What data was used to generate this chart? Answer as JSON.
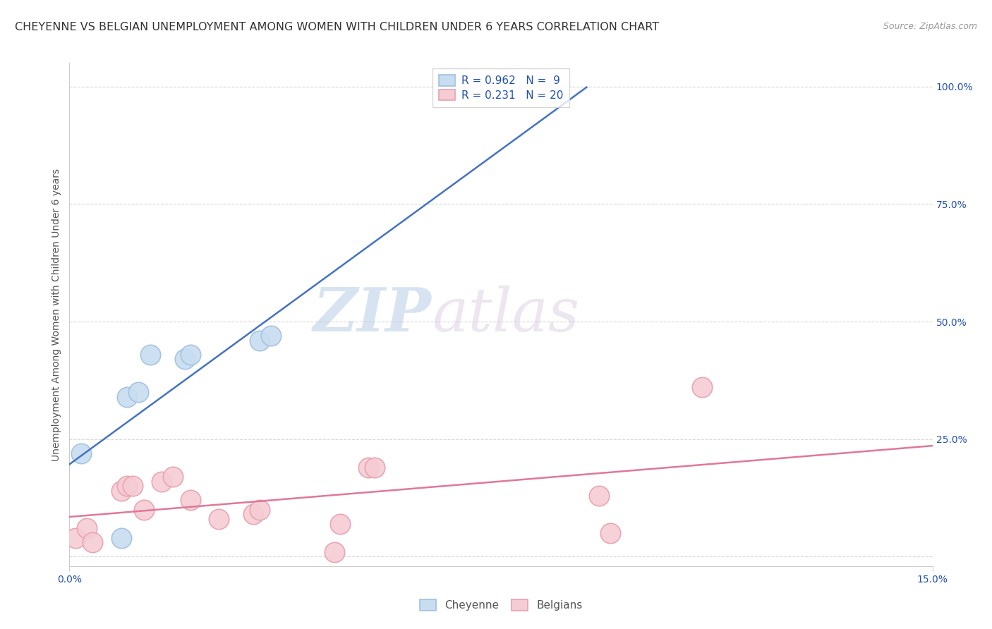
{
  "title": "CHEYENNE VS BELGIAN UNEMPLOYMENT AMONG WOMEN WITH CHILDREN UNDER 6 YEARS CORRELATION CHART",
  "source": "Source: ZipAtlas.com",
  "ylabel": "Unemployment Among Women with Children Under 6 years",
  "xlim": [
    0.0,
    0.15
  ],
  "ylim": [
    -0.02,
    1.05
  ],
  "plot_ylim": [
    0.0,
    1.0
  ],
  "right_yticks": [
    0.0,
    0.25,
    0.5,
    0.75,
    1.0
  ],
  "right_yticklabels": [
    "",
    "25.0%",
    "50.0%",
    "75.0%",
    "100.0%"
  ],
  "watermark_zip": "ZIP",
  "watermark_atlas": "atlas",
  "cheyenne": {
    "R": 0.962,
    "N": 9,
    "edge_color": "#a0c0e0",
    "fill_color": "#c8ddf0",
    "line_color": "#4472c4",
    "x": [
      0.002,
      0.009,
      0.01,
      0.012,
      0.014,
      0.02,
      0.021,
      0.033,
      0.035
    ],
    "y": [
      0.22,
      0.04,
      0.34,
      0.35,
      0.43,
      0.42,
      0.43,
      0.46,
      0.47
    ]
  },
  "belgians": {
    "R": 0.231,
    "N": 20,
    "edge_color": "#e8a0b0",
    "fill_color": "#f5ccd4",
    "line_color": "#e07898",
    "x": [
      0.001,
      0.003,
      0.004,
      0.009,
      0.01,
      0.011,
      0.013,
      0.016,
      0.018,
      0.021,
      0.026,
      0.032,
      0.033,
      0.046,
      0.047,
      0.052,
      0.053,
      0.092,
      0.094,
      0.11
    ],
    "y": [
      0.04,
      0.06,
      0.03,
      0.14,
      0.15,
      0.15,
      0.1,
      0.16,
      0.17,
      0.12,
      0.08,
      0.09,
      0.1,
      0.01,
      0.07,
      0.19,
      0.19,
      0.13,
      0.05,
      0.36
    ]
  },
  "background_color": "#ffffff",
  "grid_color": "#d8d8d8",
  "title_fontsize": 11.5,
  "ylabel_fontsize": 10,
  "tick_fontsize": 10,
  "legend_color": "#2050b0"
}
